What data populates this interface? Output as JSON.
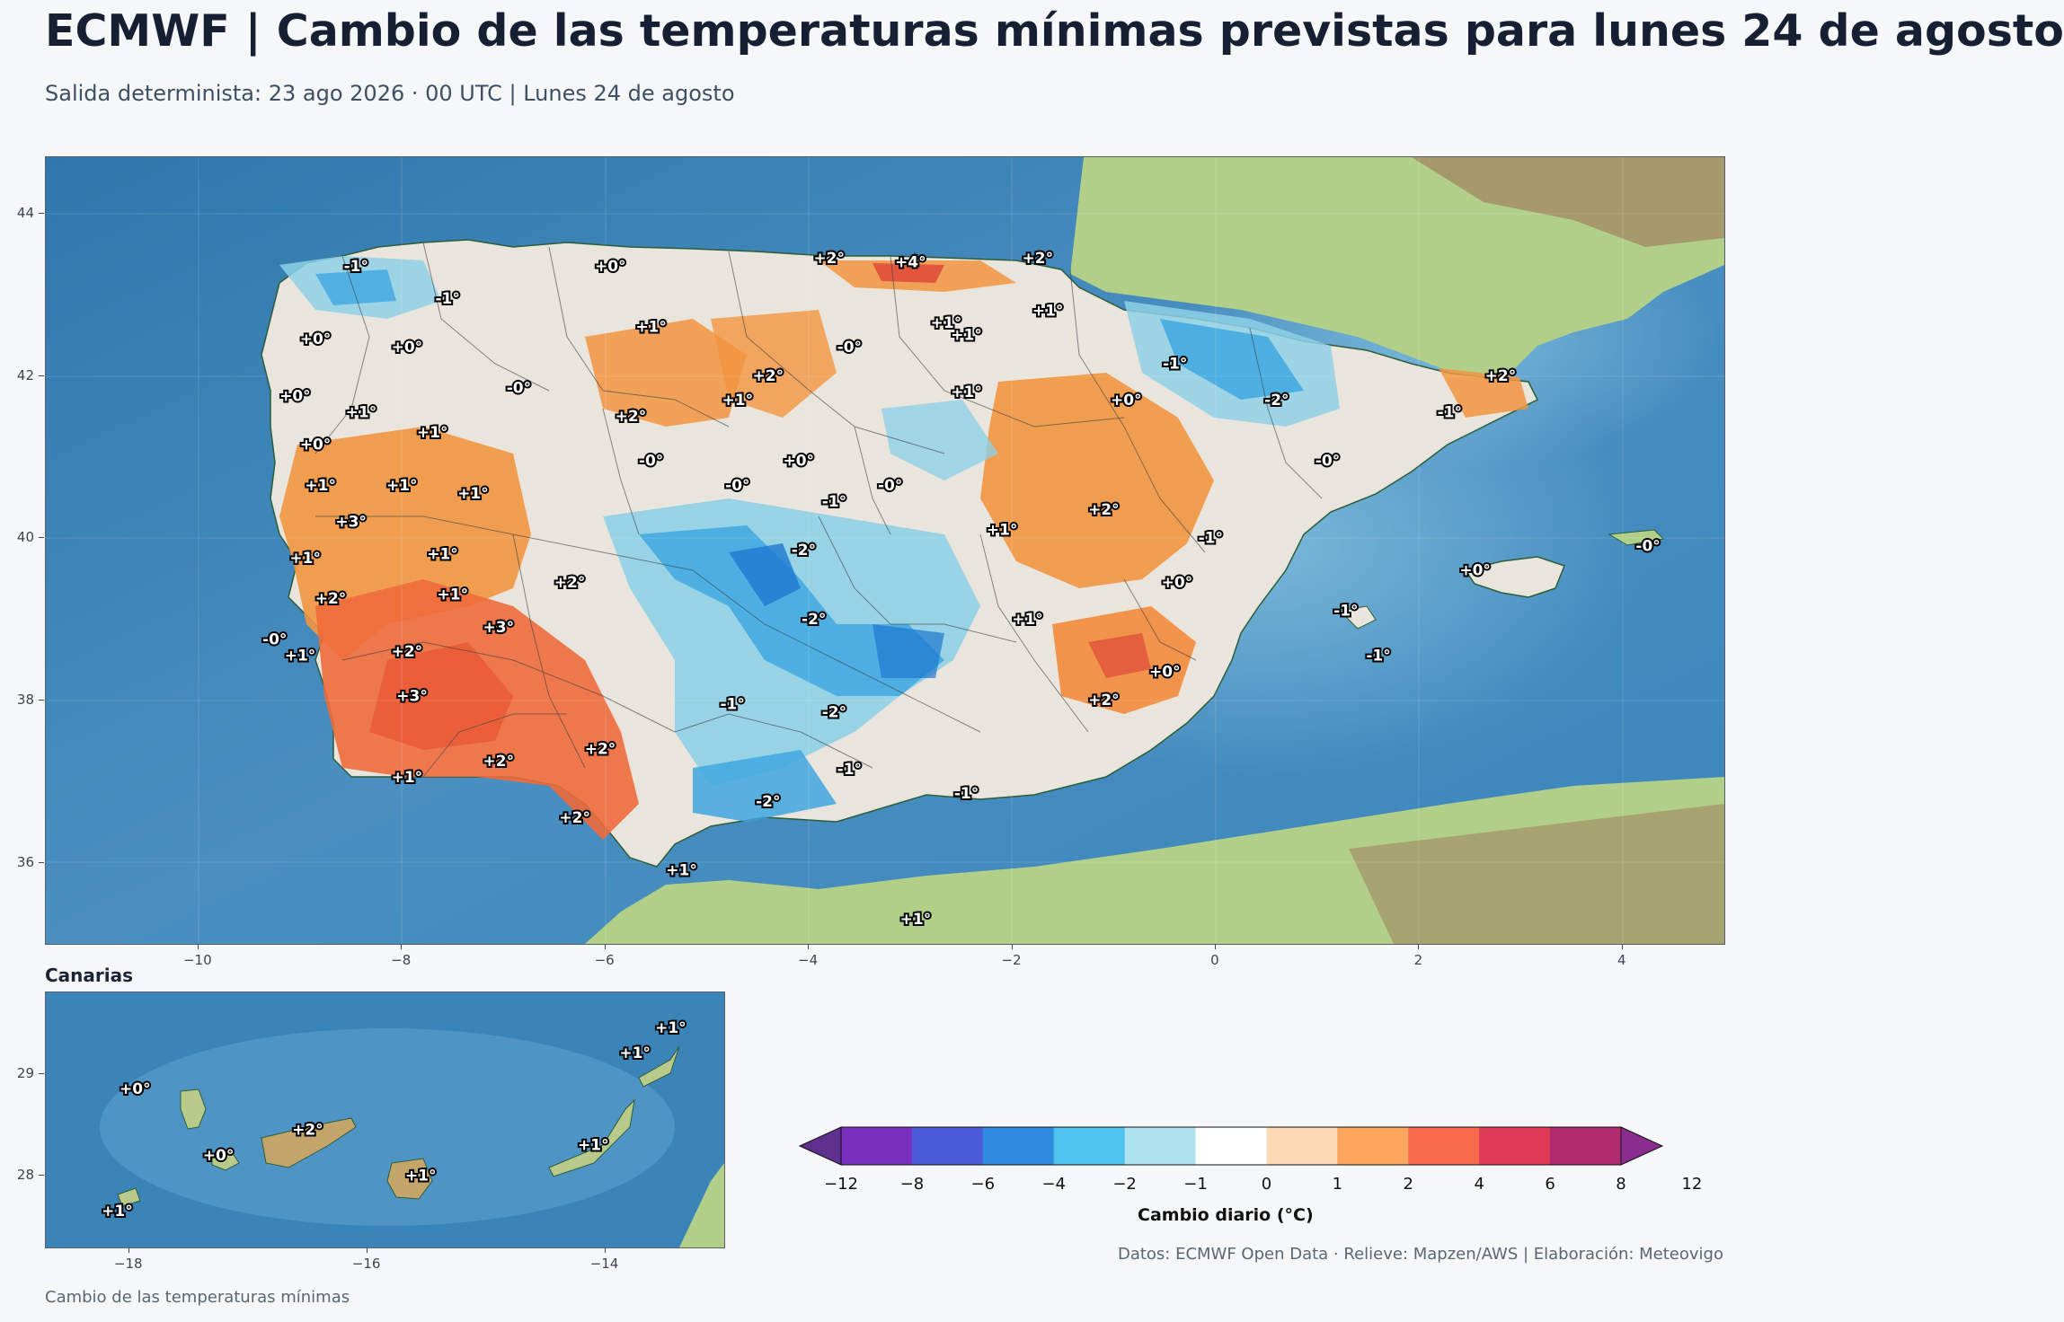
{
  "title": "ECMWF | Cambio de las temperaturas mínimas previstas para lunes 24 de agosto",
  "subtitle": "Salida determinista: 23 ago 2026 · 00 UTC  |  Lunes 24 de agosto",
  "main_map": {
    "lon_range": [
      -11.5,
      5.0
    ],
    "lat_range": [
      35.0,
      44.7
    ],
    "x_ticks": [
      "−10",
      "−8",
      "−6",
      "−4",
      "−2",
      "0",
      "2",
      "4"
    ],
    "y_ticks": [
      "44",
      "42",
      "40",
      "38",
      "36"
    ],
    "labels": [
      {
        "text": "-1°",
        "lon": -8.45,
        "lat": 43.35
      },
      {
        "text": "-1°",
        "lon": -7.55,
        "lat": 42.95
      },
      {
        "text": "+0°",
        "lon": -5.95,
        "lat": 43.35
      },
      {
        "text": "+2°",
        "lon": -3.8,
        "lat": 43.45
      },
      {
        "text": "+4°",
        "lon": -3.0,
        "lat": 43.4
      },
      {
        "text": "+2°",
        "lon": -1.75,
        "lat": 43.45
      },
      {
        "text": "+1°",
        "lon": -1.65,
        "lat": 42.8
      },
      {
        "text": "+1°",
        "lon": -5.55,
        "lat": 42.6
      },
      {
        "text": "+1°",
        "lon": -2.65,
        "lat": 42.65
      },
      {
        "text": "+1°",
        "lon": -2.45,
        "lat": 42.5
      },
      {
        "text": "+0°",
        "lon": -8.85,
        "lat": 42.45
      },
      {
        "text": "+0°",
        "lon": -7.95,
        "lat": 42.35
      },
      {
        "text": "-0°",
        "lon": -3.6,
        "lat": 42.35
      },
      {
        "text": "-1°",
        "lon": -0.4,
        "lat": 42.15
      },
      {
        "text": "+2°",
        "lon": 2.8,
        "lat": 42.0
      },
      {
        "text": "-0°",
        "lon": -6.85,
        "lat": 41.85
      },
      {
        "text": "+2°",
        "lon": -4.4,
        "lat": 42.0
      },
      {
        "text": "+1°",
        "lon": -4.7,
        "lat": 41.7
      },
      {
        "text": "+1°",
        "lon": -2.45,
        "lat": 41.8
      },
      {
        "text": "+0°",
        "lon": -0.88,
        "lat": 41.7
      },
      {
        "text": "-2°",
        "lon": 0.6,
        "lat": 41.7
      },
      {
        "text": "-1°",
        "lon": 2.3,
        "lat": 41.55
      },
      {
        "text": "+0°",
        "lon": -9.05,
        "lat": 41.75
      },
      {
        "text": "+1°",
        "lon": -8.4,
        "lat": 41.55
      },
      {
        "text": "+2°",
        "lon": -5.75,
        "lat": 41.5
      },
      {
        "text": "+1°",
        "lon": -7.7,
        "lat": 41.3
      },
      {
        "text": "+0°",
        "lon": -8.85,
        "lat": 41.15
      },
      {
        "text": "-0°",
        "lon": -5.55,
        "lat": 40.95
      },
      {
        "text": "+0°",
        "lon": -4.1,
        "lat": 40.95
      },
      {
        "text": "-0°",
        "lon": 1.1,
        "lat": 40.95
      },
      {
        "text": "+1°",
        "lon": -8.8,
        "lat": 40.65
      },
      {
        "text": "+1°",
        "lon": -8.0,
        "lat": 40.65
      },
      {
        "text": "+1°",
        "lon": -7.3,
        "lat": 40.55
      },
      {
        "text": "-0°",
        "lon": -4.7,
        "lat": 40.65
      },
      {
        "text": "-1°",
        "lon": -3.75,
        "lat": 40.45
      },
      {
        "text": "-0°",
        "lon": -3.2,
        "lat": 40.65
      },
      {
        "text": "+2°",
        "lon": -1.1,
        "lat": 40.35
      },
      {
        "text": "+3°",
        "lon": -8.5,
        "lat": 40.2
      },
      {
        "text": "+1°",
        "lon": -2.1,
        "lat": 40.1
      },
      {
        "text": "-1°",
        "lon": -0.05,
        "lat": 40.0
      },
      {
        "text": "-0°",
        "lon": 4.25,
        "lat": 39.9
      },
      {
        "text": "+1°",
        "lon": -7.6,
        "lat": 39.8
      },
      {
        "text": "+1°",
        "lon": -8.95,
        "lat": 39.75
      },
      {
        "text": "-2°",
        "lon": -4.05,
        "lat": 39.85
      },
      {
        "text": "+0°",
        "lon": 2.55,
        "lat": 39.6
      },
      {
        "text": "+2°",
        "lon": -6.35,
        "lat": 39.45
      },
      {
        "text": "+0°",
        "lon": -0.38,
        "lat": 39.45
      },
      {
        "text": "+2°",
        "lon": -8.7,
        "lat": 39.25
      },
      {
        "text": "+1°",
        "lon": -7.5,
        "lat": 39.3
      },
      {
        "text": "-1°",
        "lon": 1.28,
        "lat": 39.1
      },
      {
        "text": "-2°",
        "lon": -3.95,
        "lat": 39.0
      },
      {
        "text": "+1°",
        "lon": -1.85,
        "lat": 39.0
      },
      {
        "text": "+3°",
        "lon": -7.05,
        "lat": 38.9
      },
      {
        "text": "-0°",
        "lon": -9.25,
        "lat": 38.75
      },
      {
        "text": "+2°",
        "lon": -7.95,
        "lat": 38.6
      },
      {
        "text": "+1°",
        "lon": -9.0,
        "lat": 38.55
      },
      {
        "text": "-1°",
        "lon": 1.6,
        "lat": 38.55
      },
      {
        "text": "+0°",
        "lon": -0.5,
        "lat": 38.35
      },
      {
        "text": "+3°",
        "lon": -7.9,
        "lat": 38.05
      },
      {
        "text": "+2°",
        "lon": -1.1,
        "lat": 38.0
      },
      {
        "text": "-1°",
        "lon": -4.75,
        "lat": 37.95
      },
      {
        "text": "-2°",
        "lon": -3.75,
        "lat": 37.85
      },
      {
        "text": "+2°",
        "lon": -6.05,
        "lat": 37.4
      },
      {
        "text": "+2°",
        "lon": -7.05,
        "lat": 37.25
      },
      {
        "text": "-1°",
        "lon": -3.6,
        "lat": 37.15
      },
      {
        "text": "+1°",
        "lon": -7.95,
        "lat": 37.05
      },
      {
        "text": "-1°",
        "lon": -2.45,
        "lat": 36.85
      },
      {
        "text": "-2°",
        "lon": -4.4,
        "lat": 36.75
      },
      {
        "text": "+2°",
        "lon": -6.3,
        "lat": 36.55
      },
      {
        "text": "+1°",
        "lon": -5.25,
        "lat": 35.9
      },
      {
        "text": "+1°",
        "lon": -2.95,
        "lat": 35.3
      }
    ]
  },
  "inset": {
    "title": "Canarias",
    "lon_range": [
      -18.7,
      -13.0
    ],
    "lat_range": [
      27.3,
      29.8
    ],
    "x_ticks": [
      "−18",
      "−16",
      "−14"
    ],
    "y_ticks": [
      "29",
      "28"
    ],
    "labels": [
      {
        "text": "+0°",
        "lon": -17.95,
        "lat": 28.85
      },
      {
        "text": "+0°",
        "lon": -17.25,
        "lat": 28.2
      },
      {
        "text": "+2°",
        "lon": -16.5,
        "lat": 28.45
      },
      {
        "text": "+1°",
        "lon": -15.55,
        "lat": 28.0
      },
      {
        "text": "+1°",
        "lon": -18.1,
        "lat": 27.65
      },
      {
        "text": "+1°",
        "lon": -13.45,
        "lat": 29.45
      },
      {
        "text": "+1°",
        "lon": -13.75,
        "lat": 29.2
      },
      {
        "text": "+1°",
        "lon": -14.1,
        "lat": 28.3
      }
    ]
  },
  "colorbar": {
    "label": "Cambio diario (°C)",
    "ticks": [
      "−12",
      "−8",
      "−6",
      "−4",
      "−2",
      "−1",
      "0",
      "1",
      "2",
      "4",
      "6",
      "8",
      "12"
    ],
    "colors": [
      "#5e2f8c",
      "#7b2fbf",
      "#4a5ad8",
      "#2f8be0",
      "#4fc3ef",
      "#aee2ef",
      "#ffffff",
      "#fdd9b5",
      "#fca65e",
      "#f86a4b",
      "#df3a55",
      "#b22a70",
      "#8a2d8f"
    ]
  },
  "credits": "Datos: ECMWF Open Data · Relieve: Mapzen/AWS  |  Elaboración: Meteovigo",
  "footer": "Cambio de las temperaturas mínimas"
}
